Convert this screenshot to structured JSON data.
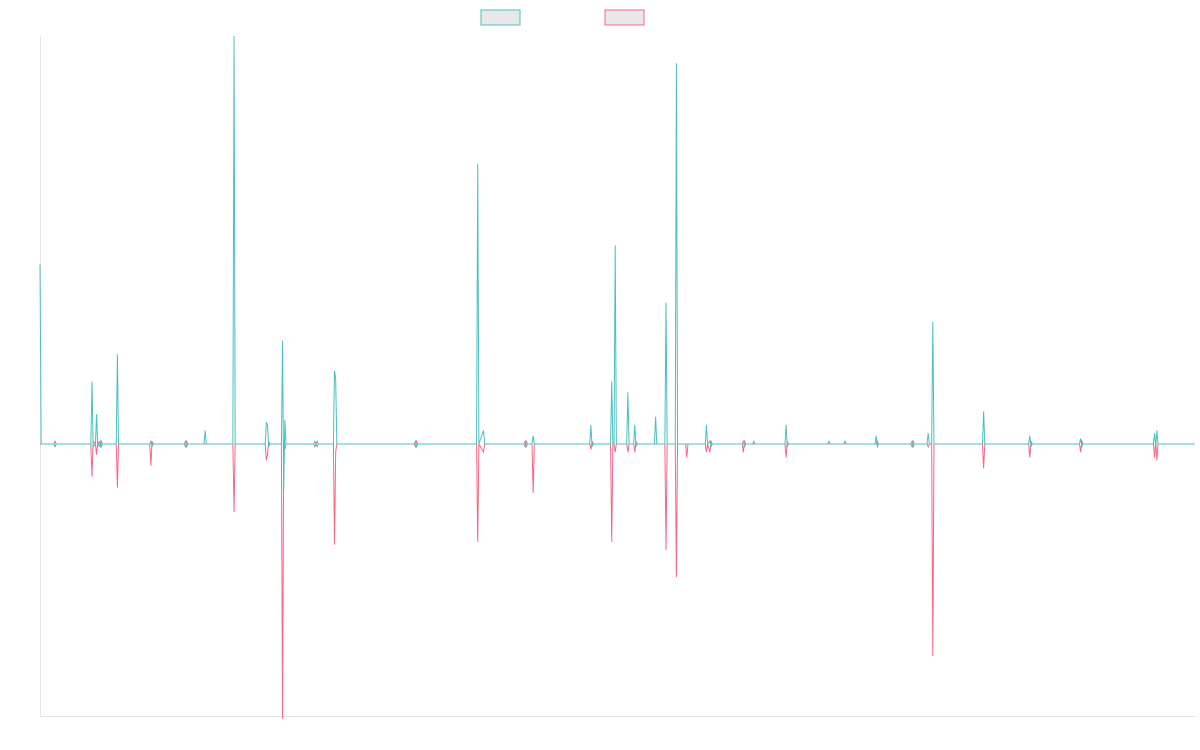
{
  "colors": {
    "series_a": "#4bc0c0",
    "series_b": "#ff6384",
    "legend_fill": "#e8e8e8",
    "axis": "#e5e5e5",
    "background": "#ffffff"
  },
  "chart_data": {
    "type": "line",
    "title": "",
    "xlabel": "",
    "ylabel": "",
    "legend_position": "top-center",
    "grid": false,
    "x_tick_labels_shown": false,
    "y_tick_labels_shown": false,
    "xlim": [
      0,
      1000
    ],
    "ylim": [
      -100,
      150
    ],
    "series": [
      {
        "name": "",
        "color": "#4bc0c0",
        "points": [
          [
            0,
            66
          ],
          [
            1,
            0
          ],
          [
            12,
            0
          ],
          [
            13,
            -1
          ],
          [
            14,
            0
          ],
          [
            44,
            0
          ],
          [
            45,
            23
          ],
          [
            46,
            -1
          ],
          [
            48,
            0
          ],
          [
            49,
            11
          ],
          [
            50,
            -1
          ],
          [
            51,
            0
          ],
          [
            52,
            1
          ],
          [
            53,
            -1
          ],
          [
            54,
            0
          ],
          [
            66,
            0
          ],
          [
            67,
            33
          ],
          [
            68,
            0
          ],
          [
            95,
            0
          ],
          [
            96,
            1
          ],
          [
            97,
            -1
          ],
          [
            98,
            0
          ],
          [
            125,
            0
          ],
          [
            126,
            1
          ],
          [
            127,
            -1
          ],
          [
            128,
            0
          ],
          [
            142,
            0
          ],
          [
            143,
            5
          ],
          [
            144,
            0
          ],
          [
            167,
            0
          ],
          [
            168,
            150
          ],
          [
            169,
            0
          ],
          [
            195,
            0
          ],
          [
            196,
            8
          ],
          [
            197,
            7
          ],
          [
            198,
            -1
          ],
          [
            199,
            0
          ],
          [
            209,
            0
          ],
          [
            210,
            38
          ],
          [
            211,
            -17
          ],
          [
            212,
            9
          ],
          [
            213,
            0
          ],
          [
            237,
            0
          ],
          [
            238,
            1
          ],
          [
            239,
            0
          ],
          [
            240,
            -1
          ],
          [
            241,
            0
          ],
          [
            254,
            0
          ],
          [
            255,
            27
          ],
          [
            256,
            24
          ],
          [
            257,
            0
          ],
          [
            324,
            0
          ],
          [
            325,
            1
          ],
          [
            326,
            -1
          ],
          [
            327,
            0
          ],
          [
            378,
            0
          ],
          [
            379,
            103
          ],
          [
            380,
            0
          ],
          [
            384,
            5
          ],
          [
            385,
            0
          ],
          [
            419,
            0
          ],
          [
            420,
            1
          ],
          [
            421,
            -1
          ],
          [
            422,
            0
          ],
          [
            426,
            0
          ],
          [
            427,
            3
          ],
          [
            428,
            0
          ],
          [
            476,
            0
          ],
          [
            477,
            7
          ],
          [
            478,
            -1
          ],
          [
            479,
            0
          ],
          [
            494,
            0
          ],
          [
            495,
            23
          ],
          [
            496,
            0
          ],
          [
            497,
            0
          ],
          [
            498,
            73
          ],
          [
            499,
            0
          ],
          [
            508,
            0
          ],
          [
            509,
            19
          ],
          [
            510,
            0
          ],
          [
            514,
            0
          ],
          [
            515,
            7
          ],
          [
            516,
            -1
          ],
          [
            517,
            0
          ],
          [
            532,
            0
          ],
          [
            533,
            10
          ],
          [
            534,
            0
          ],
          [
            541,
            0
          ],
          [
            542,
            52
          ],
          [
            543,
            0
          ],
          [
            550,
            0
          ],
          [
            551,
            140
          ],
          [
            552,
            0
          ],
          [
            576,
            0
          ],
          [
            577,
            7
          ],
          [
            578,
            0
          ],
          [
            580,
            1
          ],
          [
            581,
            -1
          ],
          [
            582,
            0
          ],
          [
            608,
            0
          ],
          [
            609,
            1
          ],
          [
            610,
            -1
          ],
          [
            611,
            0
          ],
          [
            617,
            0
          ],
          [
            618,
            1
          ],
          [
            619,
            0
          ],
          [
            645,
            0
          ],
          [
            646,
            7
          ],
          [
            647,
            -1
          ],
          [
            648,
            0
          ],
          [
            682,
            0
          ],
          [
            683,
            1
          ],
          [
            684,
            0
          ],
          [
            696,
            0
          ],
          [
            697,
            1
          ],
          [
            698,
            0
          ],
          [
            723,
            0
          ],
          [
            724,
            3
          ],
          [
            725,
            -1
          ],
          [
            726,
            0
          ],
          [
            754,
            0
          ],
          [
            755,
            1
          ],
          [
            756,
            -1
          ],
          [
            757,
            0
          ],
          [
            768,
            0
          ],
          [
            769,
            4
          ],
          [
            770,
            0
          ],
          [
            772,
            0
          ],
          [
            773,
            45
          ],
          [
            774,
            0
          ],
          [
            816,
            0
          ],
          [
            817,
            12
          ],
          [
            818,
            0
          ],
          [
            856,
            0
          ],
          [
            857,
            3
          ],
          [
            858,
            -1
          ],
          [
            859,
            0
          ],
          [
            900,
            0
          ],
          [
            901,
            2
          ],
          [
            902,
            -1
          ],
          [
            903,
            0
          ],
          [
            964,
            0
          ],
          [
            965,
            4
          ],
          [
            966,
            -1
          ],
          [
            967,
            5
          ],
          [
            968,
            0
          ],
          [
            1000,
            0
          ]
        ]
      },
      {
        "name": "",
        "color": "#ff6384",
        "points": [
          [
            0,
            0
          ],
          [
            12,
            0
          ],
          [
            13,
            1
          ],
          [
            14,
            0
          ],
          [
            44,
            0
          ],
          [
            45,
            -12
          ],
          [
            46,
            1
          ],
          [
            48,
            0
          ],
          [
            49,
            -4
          ],
          [
            50,
            1
          ],
          [
            51,
            0
          ],
          [
            52,
            -1
          ],
          [
            53,
            1
          ],
          [
            54,
            0
          ],
          [
            66,
            0
          ],
          [
            67,
            -16
          ],
          [
            68,
            0
          ],
          [
            95,
            0
          ],
          [
            96,
            -8
          ],
          [
            97,
            1
          ],
          [
            98,
            0
          ],
          [
            125,
            0
          ],
          [
            126,
            -1
          ],
          [
            127,
            1
          ],
          [
            128,
            0
          ],
          [
            167,
            0
          ],
          [
            168,
            -25
          ],
          [
            169,
            0
          ],
          [
            195,
            0
          ],
          [
            196,
            -6
          ],
          [
            197,
            -4
          ],
          [
            198,
            1
          ],
          [
            199,
            0
          ],
          [
            209,
            0
          ],
          [
            210,
            -101
          ],
          [
            211,
            1
          ],
          [
            212,
            -2
          ],
          [
            213,
            0
          ],
          [
            237,
            0
          ],
          [
            238,
            -1
          ],
          [
            239,
            0
          ],
          [
            240,
            1
          ],
          [
            241,
            0
          ],
          [
            254,
            0
          ],
          [
            255,
            -37
          ],
          [
            256,
            -3
          ],
          [
            257,
            0
          ],
          [
            324,
            0
          ],
          [
            325,
            -1
          ],
          [
            326,
            1
          ],
          [
            327,
            0
          ],
          [
            378,
            0
          ],
          [
            379,
            -36
          ],
          [
            380,
            0
          ],
          [
            384,
            -3
          ],
          [
            385,
            0
          ],
          [
            419,
            0
          ],
          [
            420,
            -1
          ],
          [
            421,
            1
          ],
          [
            422,
            0
          ],
          [
            426,
            0
          ],
          [
            427,
            -18
          ],
          [
            428,
            0
          ],
          [
            476,
            0
          ],
          [
            477,
            -2
          ],
          [
            478,
            1
          ],
          [
            479,
            0
          ],
          [
            494,
            0
          ],
          [
            495,
            -36
          ],
          [
            496,
            0
          ],
          [
            497,
            0
          ],
          [
            498,
            -3
          ],
          [
            499,
            0
          ],
          [
            508,
            0
          ],
          [
            509,
            -3
          ],
          [
            510,
            0
          ],
          [
            514,
            0
          ],
          [
            515,
            -3
          ],
          [
            516,
            1
          ],
          [
            517,
            0
          ],
          [
            541,
            0
          ],
          [
            542,
            -39
          ],
          [
            543,
            0
          ],
          [
            550,
            0
          ],
          [
            551,
            -49
          ],
          [
            552,
            0
          ],
          [
            559,
            0
          ],
          [
            560,
            -5
          ],
          [
            561,
            0
          ],
          [
            576,
            0
          ],
          [
            577,
            -3
          ],
          [
            578,
            0
          ],
          [
            580,
            -3
          ],
          [
            581,
            1
          ],
          [
            582,
            0
          ],
          [
            608,
            0
          ],
          [
            609,
            -3
          ],
          [
            610,
            1
          ],
          [
            611,
            0
          ],
          [
            645,
            0
          ],
          [
            646,
            -5
          ],
          [
            647,
            1
          ],
          [
            648,
            0
          ],
          [
            724,
            0
          ],
          [
            725,
            1
          ],
          [
            726,
            0
          ],
          [
            754,
            0
          ],
          [
            755,
            -1
          ],
          [
            756,
            1
          ],
          [
            757,
            0
          ],
          [
            768,
            0
          ],
          [
            769,
            -1
          ],
          [
            770,
            0
          ],
          [
            772,
            0
          ],
          [
            773,
            -78
          ],
          [
            774,
            0
          ],
          [
            816,
            0
          ],
          [
            817,
            -9
          ],
          [
            818,
            0
          ],
          [
            856,
            0
          ],
          [
            857,
            -5
          ],
          [
            858,
            1
          ],
          [
            859,
            0
          ],
          [
            900,
            0
          ],
          [
            901,
            -3
          ],
          [
            902,
            1
          ],
          [
            903,
            0
          ],
          [
            964,
            0
          ],
          [
            965,
            -5
          ],
          [
            966,
            1
          ],
          [
            967,
            -6
          ],
          [
            968,
            0
          ],
          [
            1000,
            0
          ]
        ]
      }
    ]
  }
}
